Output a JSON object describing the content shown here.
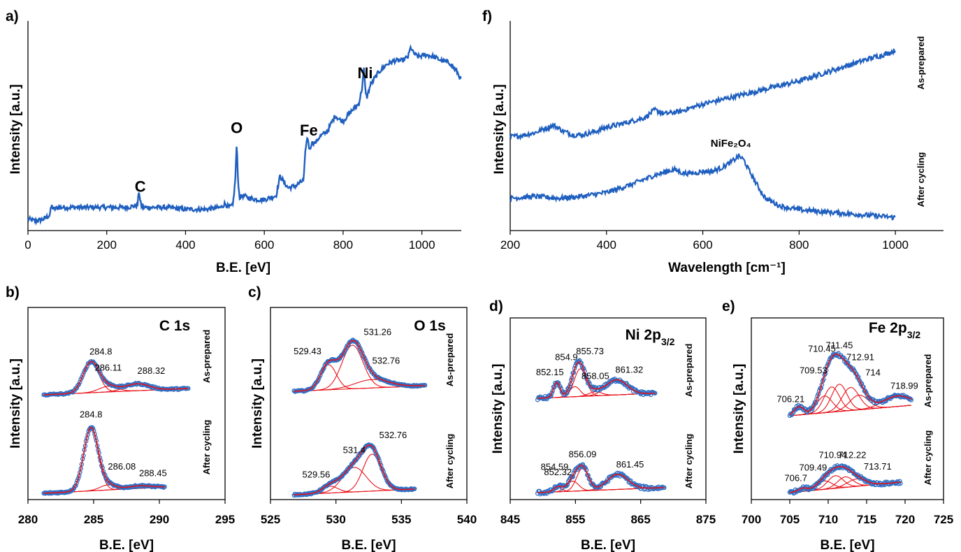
{
  "colors": {
    "data": "#1f5fbf",
    "marker": "#2e6fc4",
    "fit": "#e8121a"
  },
  "chart_data": [
    {
      "id": "a",
      "type": "line",
      "panel_label": "a)",
      "xlabel": "B.E. [eV]",
      "ylabel": "Intensity [a.u.]",
      "xlim": [
        0,
        1100
      ],
      "ylim": [
        0,
        100
      ],
      "xticks": [
        "0",
        "200",
        "400",
        "600",
        "800",
        "1000"
      ],
      "x": [
        0,
        20,
        40,
        55,
        60,
        65,
        80,
        100,
        150,
        200,
        250,
        278,
        282,
        285,
        288,
        292,
        300,
        350,
        400,
        450,
        490,
        500,
        510,
        520,
        526,
        530,
        533,
        537,
        545,
        560,
        580,
        600,
        630,
        640,
        650,
        660,
        680,
        700,
        705,
        710,
        715,
        720,
        730,
        740,
        760,
        780,
        790,
        800,
        820,
        840,
        848,
        853,
        856,
        860,
        870,
        890,
        910,
        930,
        950,
        965,
        972,
        978,
        990,
        1010,
        1030,
        1050,
        1070,
        1090,
        1100
      ],
      "values": [
        3,
        2,
        3,
        5,
        10,
        8,
        9,
        9,
        9,
        9,
        9,
        10,
        18,
        12,
        10,
        9,
        9,
        9,
        8,
        8,
        9,
        11,
        9,
        10,
        22,
        42,
        24,
        14,
        15,
        14,
        13,
        13,
        15,
        25,
        22,
        19,
        20,
        23,
        40,
        45,
        38,
        42,
        42,
        45,
        48,
        56,
        54,
        53,
        58,
        62,
        70,
        80,
        70,
        65,
        72,
        78,
        82,
        84,
        84,
        86,
        91,
        88,
        86,
        87,
        86,
        84,
        83,
        78,
        74
      ],
      "annotations": [
        {
          "text": "C",
          "x": 285
        },
        {
          "text": "O",
          "x": 530
        },
        {
          "text": "Fe",
          "x": 713
        },
        {
          "text": "Ni",
          "x": 856
        }
      ]
    },
    {
      "id": "f",
      "type": "line",
      "panel_label": "f)",
      "xlabel": "Wavelength [cm⁻¹]",
      "ylabel": "Intensity [a.u.]",
      "xlim": [
        200,
        1100
      ],
      "ylim": [
        0,
        100
      ],
      "xticks": [
        "200",
        "400",
        "600",
        "800",
        "1000"
      ],
      "series": [
        {
          "name": "As-prepared",
          "x": [
            200,
            220,
            250,
            270,
            290,
            310,
            330,
            350,
            380,
            400,
            420,
            450,
            480,
            500,
            510,
            520,
            550,
            600,
            650,
            700,
            750,
            800,
            850,
            900,
            950,
            980,
            1000
          ],
          "values": [
            47,
            47.5,
            49,
            51,
            53,
            50,
            48,
            48,
            50,
            52,
            53,
            55,
            57,
            61,
            60,
            59,
            60,
            64,
            67,
            70,
            73,
            76,
            80,
            84,
            88,
            90,
            92
          ]
        },
        {
          "name": "After cycling",
          "x": [
            200,
            250,
            300,
            350,
            400,
            450,
            500,
            540,
            560,
            580,
            600,
            620,
            640,
            660,
            675,
            685,
            695,
            710,
            730,
            760,
            800,
            850,
            900,
            950,
            1000
          ],
          "values": [
            15,
            16,
            15,
            16,
            18,
            22,
            27,
            30,
            28,
            28,
            29,
            29,
            31,
            34,
            37,
            35,
            30,
            23,
            15,
            11,
            9,
            8,
            7,
            6,
            5
          ]
        }
      ],
      "annotations": [
        {
          "text": "NiFe₂O₄",
          "x": 670
        }
      ]
    },
    {
      "id": "b",
      "type": "scatter+line",
      "panel_label": "b)",
      "core_level": "C 1s",
      "xlabel": "B.E. [eV]",
      "ylabel": "Intensity [a.u.]",
      "xlim": [
        280,
        295
      ],
      "xticks": [
        "280",
        "285",
        "290",
        "295"
      ],
      "series": [
        {
          "name": "As-prepared",
          "range": [
            281.2,
            292.2
          ],
          "components": [
            {
              "center": 284.8,
              "height": 48,
              "width": 0.6
            },
            {
              "center": 286.11,
              "height": 9,
              "width": 0.7
            },
            {
              "center": 288.32,
              "height": 11,
              "width": 0.9
            }
          ],
          "peak_labels": [
            "284.8",
            "286.11",
            "288.32"
          ]
        },
        {
          "name": "After cycling",
          "range": [
            281.2,
            290.4
          ],
          "components": [
            {
              "center": 284.8,
              "height": 100,
              "width": 0.55
            },
            {
              "center": 286.08,
              "height": 8,
              "width": 0.6
            },
            {
              "center": 288.45,
              "height": 4,
              "width": 0.9
            }
          ],
          "peak_labels": [
            "284.8",
            "286.08",
            "288.45"
          ]
        }
      ]
    },
    {
      "id": "c",
      "type": "scatter+line",
      "panel_label": "c)",
      "core_level": "O 1s",
      "xlabel": "B.E. [eV]",
      "ylabel": "Intensity [a.u.]",
      "xlim": [
        525,
        540
      ],
      "xticks": [
        "525",
        "530",
        "535",
        "540"
      ],
      "series": [
        {
          "name": "As-prepared",
          "range": [
            526.8,
            536.8
          ],
          "components": [
            {
              "center": 529.43,
              "height": 45,
              "width": 0.6
            },
            {
              "center": 531.26,
              "height": 78,
              "width": 0.8
            },
            {
              "center": 532.76,
              "height": 15,
              "width": 1.3
            }
          ],
          "peak_labels": [
            "529.43",
            "531.26",
            "532.76"
          ]
        },
        {
          "name": "After cycling",
          "range": [
            526.8,
            536.0
          ],
          "components": [
            {
              "center": 529.56,
              "height": 12,
              "width": 0.6
            },
            {
              "center": 531.4,
              "height": 44,
              "width": 0.9
            },
            {
              "center": 532.76,
              "height": 66,
              "width": 0.7
            }
          ],
          "peak_labels": [
            "529.56",
            "531.4",
            "532.76"
          ]
        }
      ]
    },
    {
      "id": "d",
      "type": "scatter+line",
      "panel_label": "d)",
      "core_level": "Ni 2p",
      "core_level_sub": "3/2",
      "xlabel": "B.E. [eV]",
      "ylabel": "Intensity [a.u.]",
      "xlim": [
        845,
        875
      ],
      "xticks": [
        "845",
        "855",
        "865",
        "875"
      ],
      "series": [
        {
          "name": "As-prepared",
          "range": [
            849.2,
            867.2
          ],
          "components": [
            {
              "center": 852.15,
              "height": 30,
              "width": 0.5
            },
            {
              "center": 854.9,
              "height": 20,
              "width": 0.8
            },
            {
              "center": 855.73,
              "height": 55,
              "width": 0.9
            },
            {
              "center": 858.05,
              "height": 8,
              "width": 1.0
            },
            {
              "center": 861.32,
              "height": 30,
              "width": 1.6
            }
          ],
          "peak_labels": [
            "852.15",
            "854.9",
            "855.73",
            "858.05",
            "861.32"
          ]
        },
        {
          "name": "After cycling",
          "range": [
            849.2,
            868.6
          ],
          "components": [
            {
              "center": 852.32,
              "height": 10,
              "width": 0.6
            },
            {
              "center": 854.59,
              "height": 20,
              "width": 0.9
            },
            {
              "center": 856.09,
              "height": 45,
              "width": 0.9
            },
            {
              "center": 861.45,
              "height": 30,
              "width": 1.6
            }
          ],
          "peak_labels": [
            "852.32",
            "854.59",
            "856.09",
            "861.45"
          ]
        }
      ]
    },
    {
      "id": "e",
      "type": "scatter+line",
      "panel_label": "e)",
      "core_level": "Fe 2p",
      "core_level_sub": "3/2",
      "xlabel": "B.E. [eV]",
      "ylabel": "Intensity [a.u.]",
      "xlim": [
        700,
        725
      ],
      "xticks": [
        "700",
        "705",
        "710",
        "715",
        "720",
        "725"
      ],
      "series": [
        {
          "name": "As-prepared",
          "range": [
            705.0,
            720.8
          ],
          "components": [
            {
              "center": 706.21,
              "height": 8,
              "width": 0.6
            },
            {
              "center": 709.53,
              "height": 16,
              "width": 1.0
            },
            {
              "center": 710.45,
              "height": 24,
              "width": 1.0
            },
            {
              "center": 711.45,
              "height": 26,
              "width": 1.0
            },
            {
              "center": 712.91,
              "height": 22,
              "width": 1.1
            },
            {
              "center": 714,
              "height": 14,
              "width": 1.2
            },
            {
              "center": 718.99,
              "height": 10,
              "width": 1.8
            }
          ],
          "peak_labels": [
            "706.21",
            "709.53",
            "710.45",
            "711.45",
            "712.91",
            "714",
            "718.99"
          ]
        },
        {
          "name": "After cycling",
          "range": [
            705.0,
            719.4
          ],
          "components": [
            {
              "center": 706.7,
              "height": 3,
              "width": 0.6
            },
            {
              "center": 709.49,
              "height": 8,
              "width": 1.0
            },
            {
              "center": 710.94,
              "height": 12,
              "width": 1.0
            },
            {
              "center": 712.22,
              "height": 10,
              "width": 1.0
            },
            {
              "center": 713.71,
              "height": 7,
              "width": 1.2
            }
          ],
          "peak_labels": [
            "706.7",
            "709.49",
            "710.94",
            "712.22",
            "713.71"
          ]
        }
      ]
    }
  ]
}
